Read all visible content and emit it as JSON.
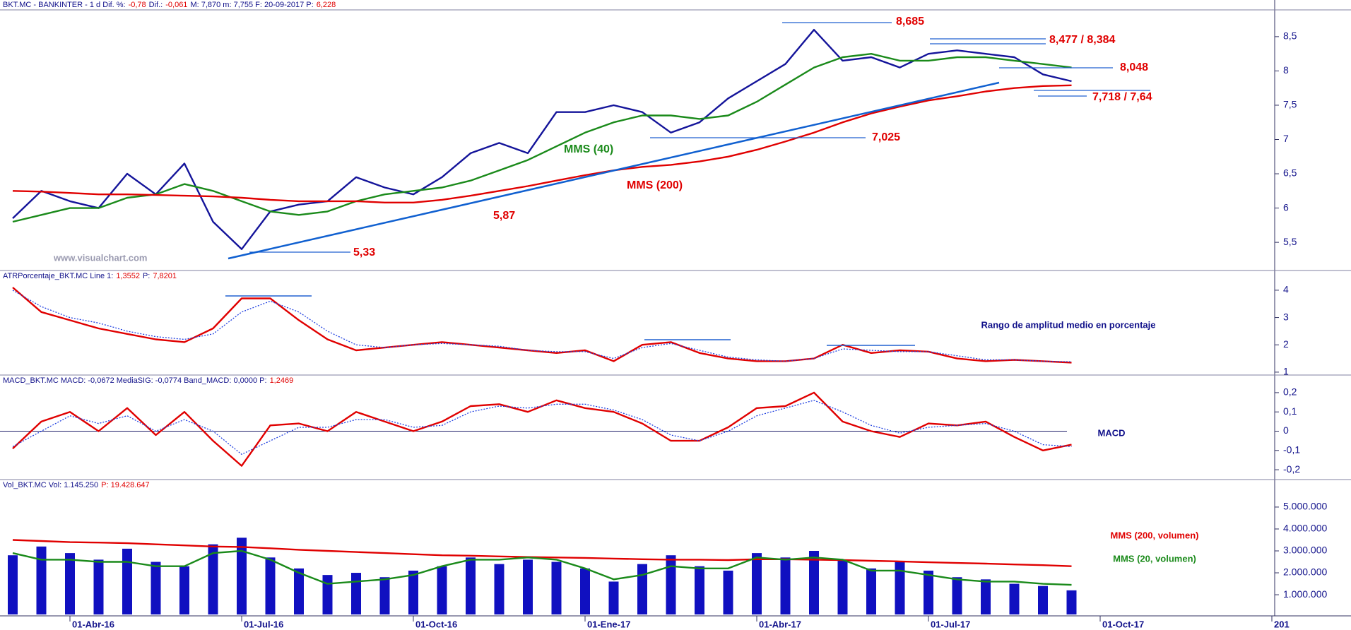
{
  "chart_data": [
    {
      "type": "line",
      "header": [
        "BKT.MC - BANKINTER - 1 d  Dif. %:",
        "-0,78",
        "Dif.:",
        "-0,061",
        "M: 7,870  m: 7,755  F: 20-09-2017  P:",
        "6,228"
      ],
      "ylim": [
        5.12,
        8.88
      ],
      "yticks": [
        {
          "value": 5.5,
          "label": "5,5"
        },
        6,
        {
          "value": 6.5,
          "label": "6,5"
        },
        7,
        {
          "value": 7.5,
          "label": "7,5"
        },
        8,
        {
          "value": 8.5,
          "label": "8,5"
        }
      ],
      "annotations": [
        "8,685",
        "8,477 / 8,384",
        "8,048",
        "7,718 / 7,64",
        "7,025",
        "5,87",
        "5,33",
        "www.visualchart.com"
      ],
      "series": [
        {
          "color": "#14149a",
          "values": [
            5.85,
            6.25,
            6.1,
            6.0,
            6.5,
            6.2,
            6.65,
            5.8,
            5.4,
            5.95,
            6.05,
            6.1,
            6.45,
            6.3,
            6.2,
            6.45,
            6.8,
            6.95,
            6.8,
            7.4,
            7.4,
            7.5,
            7.4,
            7.1,
            7.25,
            7.6,
            7.85,
            8.1,
            8.6,
            8.15,
            8.2,
            8.05,
            8.25,
            8.3,
            8.25,
            8.2,
            7.95,
            7.85
          ]
        },
        {
          "name": "MMS (40)",
          "color": "#1a8a1a",
          "values": [
            5.8,
            5.9,
            6.0,
            6.0,
            6.15,
            6.2,
            6.35,
            6.25,
            6.1,
            5.95,
            5.9,
            5.95,
            6.1,
            6.2,
            6.25,
            6.3,
            6.4,
            6.55,
            6.7,
            6.9,
            7.1,
            7.25,
            7.35,
            7.35,
            7.3,
            7.35,
            7.55,
            7.8,
            8.05,
            8.2,
            8.25,
            8.15,
            8.15,
            8.2,
            8.2,
            8.15,
            8.1,
            8.05
          ]
        },
        {
          "name": "MMS (200)",
          "color": "#e00000",
          "values": [
            6.25,
            6.24,
            6.22,
            6.2,
            6.2,
            6.19,
            6.18,
            6.17,
            6.15,
            6.12,
            6.1,
            6.1,
            6.1,
            6.08,
            6.08,
            6.12,
            6.18,
            6.25,
            6.32,
            6.4,
            6.48,
            6.55,
            6.6,
            6.63,
            6.68,
            6.75,
            6.85,
            6.97,
            7.1,
            7.25,
            7.38,
            7.48,
            7.57,
            7.63,
            7.7,
            7.75,
            7.78,
            7.79
          ]
        }
      ]
    },
    {
      "type": "line",
      "header": [
        "ATRPorcentaje_BKT.MC  Line 1:",
        "1,3552",
        "P:",
        "7,8201"
      ],
      "label": "Rango de amplitud medio en porcentaje",
      "ylim": [
        0.92,
        4.67
      ],
      "yticks": [
        1,
        2,
        3,
        4
      ],
      "series": [
        {
          "color": "#e00000",
          "values": [
            4.1,
            3.2,
            2.9,
            2.6,
            2.4,
            2.2,
            2.1,
            2.6,
            3.7,
            3.7,
            2.9,
            2.2,
            1.8,
            1.9,
            2.0,
            2.1,
            2.0,
            1.9,
            1.8,
            1.7,
            1.8,
            1.4,
            2.0,
            2.1,
            1.7,
            1.5,
            1.4,
            1.4,
            1.5,
            2.0,
            1.7,
            1.8,
            1.75,
            1.5,
            1.4,
            1.45,
            1.4,
            1.35
          ]
        },
        {
          "color": "#2040e0",
          "style": "dotted",
          "values": [
            4.0,
            3.4,
            3.0,
            2.8,
            2.5,
            2.3,
            2.2,
            2.4,
            3.2,
            3.6,
            3.2,
            2.5,
            2.0,
            1.9,
            2.0,
            2.05,
            2.0,
            1.95,
            1.8,
            1.75,
            1.75,
            1.5,
            1.9,
            2.05,
            1.8,
            1.55,
            1.45,
            1.4,
            1.5,
            1.85,
            1.8,
            1.75,
            1.75,
            1.6,
            1.45,
            1.45,
            1.4,
            1.38
          ]
        }
      ]
    },
    {
      "type": "line",
      "header": [
        "MACD_BKT.MC  MACD: -0,0672  MediaSIG: -0,0774  Band_MACD: 0,0000  P:",
        "1,2469"
      ],
      "label": "MACD",
      "ylim": [
        -0.251,
        0.284
      ],
      "yticks": [
        {
          "value": -0.2,
          "label": "-0,2"
        },
        {
          "value": -0.1,
          "label": "-0,1"
        },
        0,
        {
          "value": 0.1,
          "label": "0,1"
        },
        {
          "value": 0.2,
          "label": "0,2"
        }
      ],
      "zero_line": true,
      "series": [
        {
          "color": "#e00000",
          "values": [
            -0.09,
            0.05,
            0.1,
            0.0,
            0.12,
            -0.02,
            0.1,
            -0.05,
            -0.18,
            0.03,
            0.04,
            0.0,
            0.1,
            0.05,
            0.0,
            0.05,
            0.13,
            0.14,
            0.1,
            0.16,
            0.12,
            0.1,
            0.04,
            -0.05,
            -0.05,
            0.02,
            0.12,
            0.13,
            0.2,
            0.05,
            0.0,
            -0.03,
            0.04,
            0.03,
            0.05,
            -0.03,
            -0.1,
            -0.07
          ]
        },
        {
          "color": "#2040e0",
          "style": "dotted",
          "values": [
            -0.08,
            0.0,
            0.08,
            0.04,
            0.08,
            0.0,
            0.06,
            0.0,
            -0.12,
            -0.05,
            0.02,
            0.02,
            0.06,
            0.06,
            0.02,
            0.03,
            0.1,
            0.13,
            0.12,
            0.14,
            0.14,
            0.11,
            0.06,
            -0.02,
            -0.05,
            0.0,
            0.08,
            0.12,
            0.16,
            0.1,
            0.03,
            -0.01,
            0.02,
            0.03,
            0.04,
            0.0,
            -0.07,
            -0.08
          ]
        }
      ]
    },
    {
      "type": "bar",
      "header": [
        "Vol_BKT.MC  Vol: 1.145.250",
        "P: 19.428.647"
      ],
      "ylim": [
        100000,
        6190000
      ],
      "yticks": [
        {
          "value": 1000000,
          "label": "1.000.000"
        },
        {
          "value": 2000000,
          "label": "2.000.000"
        },
        {
          "value": 3000000,
          "label": "3.000.000"
        },
        {
          "value": 4000000,
          "label": "4.000.000"
        },
        {
          "value": 5000000,
          "label": "5.000.000"
        }
      ],
      "categories": [
        null,
        null,
        "01-Abr-16",
        null,
        null,
        null,
        null,
        null,
        "01-Jul-16",
        null,
        null,
        null,
        null,
        null,
        "01-Oct-16",
        null,
        null,
        null,
        null,
        null,
        "01-Ene-17",
        null,
        null,
        null,
        null,
        null,
        "01-Abr-17",
        null,
        null,
        null,
        null,
        null,
        "01-Jul-17",
        null,
        null,
        null,
        null,
        null,
        "01-Oct-17",
        null,
        null,
        null,
        null,
        null,
        "201"
      ],
      "series": [
        {
          "color": "#1010c0",
          "values": [
            2800000,
            3200000,
            2900000,
            2600000,
            3100000,
            2500000,
            2300000,
            3300000,
            3600000,
            2700000,
            2200000,
            1900000,
            2000000,
            1800000,
            2100000,
            2300000,
            2700000,
            2400000,
            2600000,
            2500000,
            2200000,
            1600000,
            2400000,
            2800000,
            2300000,
            2100000,
            2900000,
            2700000,
            3000000,
            2600000,
            2200000,
            2500000,
            2100000,
            1800000,
            1700000,
            1500000,
            1400000,
            1200000,
            null,
            null,
            null,
            null,
            null,
            null,
            null
          ]
        },
        {
          "type": "line",
          "name": "MMS (200, volumen)",
          "color": "#e00000",
          "values": [
            3500000,
            3450000,
            3400000,
            3380000,
            3350000,
            3300000,
            3250000,
            3200000,
            3180000,
            3120000,
            3050000,
            3000000,
            2950000,
            2900000,
            2850000,
            2800000,
            2780000,
            2750000,
            2720000,
            2700000,
            2680000,
            2650000,
            2620000,
            2600000,
            2600000,
            2580000,
            2620000,
            2620000,
            2600000,
            2580000,
            2550000,
            2520000,
            2480000,
            2450000,
            2420000,
            2380000,
            2350000,
            2300000,
            null,
            null,
            null,
            null,
            null,
            null,
            null
          ]
        },
        {
          "type": "line",
          "name": "MMS (20, volumen)",
          "color": "#1a8a1a",
          "values": [
            2900000,
            2600000,
            2600000,
            2500000,
            2500000,
            2300000,
            2300000,
            2900000,
            3000000,
            2600000,
            2000000,
            1500000,
            1600000,
            1700000,
            1900000,
            2300000,
            2600000,
            2600000,
            2700000,
            2600000,
            2200000,
            1700000,
            1900000,
            2300000,
            2200000,
            2200000,
            2700000,
            2600000,
            2700000,
            2600000,
            2100000,
            2100000,
            1900000,
            1700000,
            1600000,
            1600000,
            1500000,
            1450000,
            null,
            null,
            null,
            null,
            null,
            null,
            null
          ]
        }
      ]
    }
  ]
}
